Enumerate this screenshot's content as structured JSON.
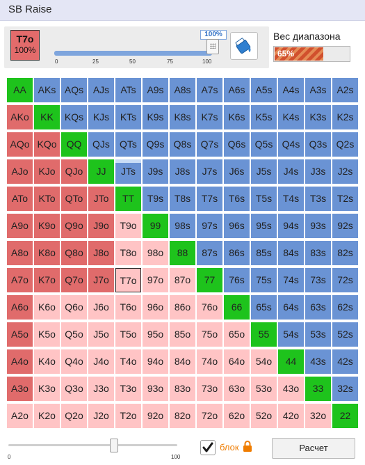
{
  "title": "SB Raise",
  "selected_hand": {
    "label": "T7o",
    "percent": "100%"
  },
  "frequency_slider": {
    "value_label": "100%",
    "value": 100,
    "ticks": [
      "0",
      "25",
      "50",
      "75",
      "100"
    ]
  },
  "fill_icon": "paint-bucket-icon",
  "range_weight": {
    "label": "Вес диапазона",
    "value_label": "65%",
    "value": 65
  },
  "colors": {
    "pair": "#1ec31c",
    "suited": "#6a93d4",
    "offsuit_in_range": "#e06b6b",
    "offsuit_out_range": "#ffc4c5",
    "partial_fill": "#c9ddf6",
    "accent": "#ef7c00"
  },
  "matrix": [
    [
      "AA",
      "AKs",
      "AQs",
      "AJs",
      "ATs",
      "A9s",
      "A8s",
      "A7s",
      "A6s",
      "A5s",
      "A4s",
      "A3s",
      "A2s"
    ],
    [
      "AKo",
      "KK",
      "KQs",
      "KJs",
      "KTs",
      "K9s",
      "K8s",
      "K7s",
      "K6s",
      "K5s",
      "K4s",
      "K3s",
      "K2s"
    ],
    [
      "AQo",
      "KQo",
      "QQ",
      "QJs",
      "QTs",
      "Q9s",
      "Q8s",
      "Q7s",
      "Q6s",
      "Q5s",
      "Q4s",
      "Q3s",
      "Q2s"
    ],
    [
      "AJo",
      "KJo",
      "QJo",
      "JJ",
      "JTs",
      "J9s",
      "J8s",
      "J7s",
      "J6s",
      "J5s",
      "J4s",
      "J3s",
      "J2s"
    ],
    [
      "ATo",
      "KTo",
      "QTo",
      "JTo",
      "TT",
      "T9s",
      "T8s",
      "T7s",
      "T6s",
      "T5s",
      "T4s",
      "T3s",
      "T2s"
    ],
    [
      "A9o",
      "K9o",
      "Q9o",
      "J9o",
      "T9o",
      "99",
      "98s",
      "97s",
      "96s",
      "95s",
      "94s",
      "93s",
      "92s"
    ],
    [
      "A8o",
      "K8o",
      "Q8o",
      "J8o",
      "T8o",
      "98o",
      "88",
      "87s",
      "86s",
      "85s",
      "84s",
      "83s",
      "82s"
    ],
    [
      "A7o",
      "K7o",
      "Q7o",
      "J7o",
      "T7o",
      "97o",
      "87o",
      "77",
      "76s",
      "75s",
      "74s",
      "73s",
      "72s"
    ],
    [
      "A6o",
      "K6o",
      "Q6o",
      "J6o",
      "T6o",
      "96o",
      "86o",
      "76o",
      "66",
      "65s",
      "64s",
      "63s",
      "62s"
    ],
    [
      "A5o",
      "K5o",
      "Q5o",
      "J5o",
      "T5o",
      "95o",
      "85o",
      "75o",
      "65o",
      "55",
      "54s",
      "53s",
      "52s"
    ],
    [
      "A4o",
      "K4o",
      "Q4o",
      "J4o",
      "T4o",
      "94o",
      "84o",
      "74o",
      "64o",
      "54o",
      "44",
      "43s",
      "42s"
    ],
    [
      "A3o",
      "K3o",
      "Q3o",
      "J3o",
      "T3o",
      "93o",
      "83o",
      "73o",
      "63o",
      "53o",
      "43o",
      "33",
      "32s"
    ],
    [
      "A2o",
      "K2o",
      "Q2o",
      "J2o",
      "T2o",
      "92o",
      "82o",
      "72o",
      "62o",
      "52o",
      "42o",
      "32o",
      "22"
    ]
  ],
  "offsuit_in_range_depth": [
    12,
    12,
    4,
    4,
    5,
    4,
    4,
    4,
    1,
    1,
    1,
    1,
    0
  ],
  "partial_cells": {
    "JTs": 0.15
  },
  "selected_cell": "T7o",
  "bottom_slider": {
    "ticks": [
      "0",
      "100"
    ],
    "value": 65
  },
  "lock_checkbox": {
    "checked": true,
    "label": "блок",
    "icon": "lock-icon"
  },
  "calculate_button": {
    "label": "Расчет"
  }
}
